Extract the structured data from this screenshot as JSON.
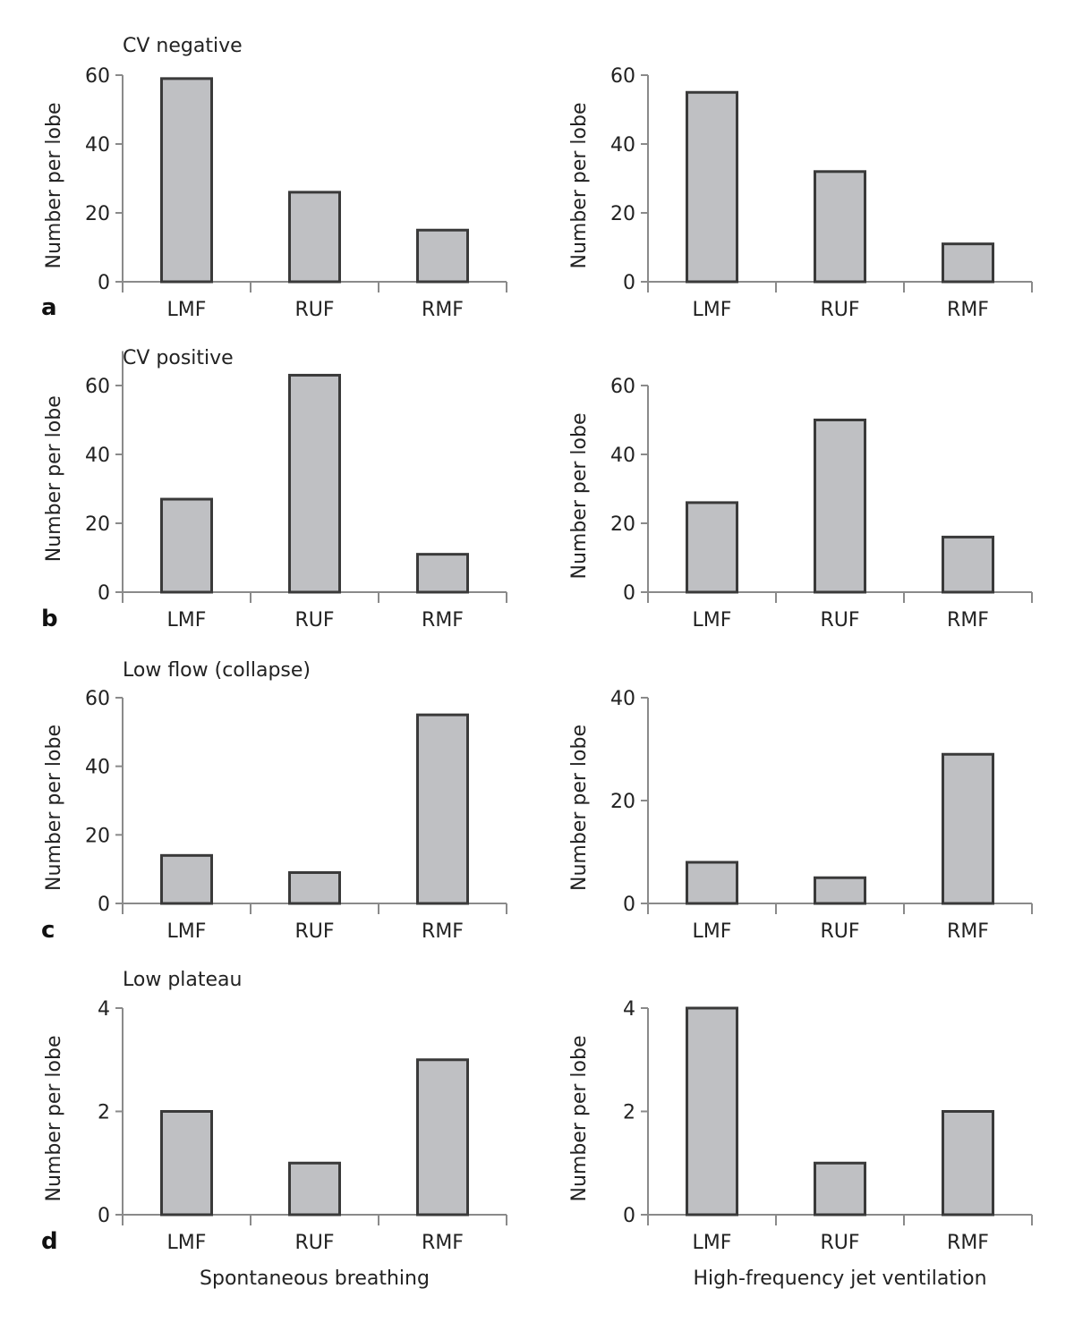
{
  "chart_data": [
    {
      "type": "bar",
      "panel": "a",
      "column": "Spontaneous breathing",
      "title": "CV negative",
      "categories": [
        "LMF",
        "RUF",
        "RMF"
      ],
      "values": [
        59,
        26,
        15
      ],
      "ylabel": "Number per lobe",
      "xlabel": "",
      "ylim": [
        0,
        60
      ],
      "yticks": [
        0,
        20,
        40,
        60
      ]
    },
    {
      "type": "bar",
      "panel": "a",
      "column": "High-frequency jet ventilation",
      "title": "",
      "categories": [
        "LMF",
        "RUF",
        "RMF"
      ],
      "values": [
        55,
        32,
        11
      ],
      "ylabel": "Number per lobe",
      "xlabel": "",
      "ylim": [
        0,
        60
      ],
      "yticks": [
        0,
        20,
        40,
        60
      ]
    },
    {
      "type": "bar",
      "panel": "b",
      "column": "Spontaneous breathing",
      "title": "CV positive",
      "categories": [
        "LMF",
        "RUF",
        "RMF"
      ],
      "values": [
        27,
        63,
        11
      ],
      "ylabel": "Number per lobe",
      "xlabel": "",
      "ylim": [
        0,
        70
      ],
      "yticks": [
        0,
        20,
        40,
        60
      ]
    },
    {
      "type": "bar",
      "panel": "b",
      "column": "High-frequency jet ventilation",
      "title": "",
      "categories": [
        "LMF",
        "RUF",
        "RMF"
      ],
      "values": [
        26,
        50,
        16
      ],
      "ylabel": "Number per lobe",
      "xlabel": "",
      "ylim": [
        0,
        60
      ],
      "yticks": [
        0,
        20,
        40,
        60
      ]
    },
    {
      "type": "bar",
      "panel": "c",
      "column": "Spontaneous breathing",
      "title": "Low flow (collapse)",
      "categories": [
        "LMF",
        "RUF",
        "RMF"
      ],
      "values": [
        14,
        9,
        55
      ],
      "ylabel": "Number per lobe",
      "xlabel": "",
      "ylim": [
        0,
        60
      ],
      "yticks": [
        0,
        20,
        40,
        60
      ]
    },
    {
      "type": "bar",
      "panel": "c",
      "column": "High-frequency jet ventilation",
      "title": "",
      "categories": [
        "LMF",
        "RUF",
        "RMF"
      ],
      "values": [
        8,
        5,
        29
      ],
      "ylabel": "Number per lobe",
      "xlabel": "",
      "ylim": [
        0,
        40
      ],
      "yticks": [
        0,
        20,
        40
      ]
    },
    {
      "type": "bar",
      "panel": "d",
      "column": "Spontaneous breathing",
      "title": "Low plateau",
      "categories": [
        "LMF",
        "RUF",
        "RMF"
      ],
      "values": [
        2,
        1,
        3
      ],
      "ylabel": "Number per lobe",
      "xlabel": "Spontaneous breathing",
      "ylim": [
        0,
        4
      ],
      "yticks": [
        0,
        2,
        4
      ]
    },
    {
      "type": "bar",
      "panel": "d",
      "column": "High-frequency jet ventilation",
      "title": "",
      "categories": [
        "LMF",
        "RUF",
        "RMF"
      ],
      "values": [
        4,
        1,
        2
      ],
      "ylabel": "Number per lobe",
      "xlabel": "High-frequency jet ventilation",
      "ylim": [
        0,
        4
      ],
      "yticks": [
        0,
        2,
        4
      ]
    }
  ],
  "panel_letters": [
    "a",
    "b",
    "c",
    "d"
  ],
  "column_labels": [
    "Spontaneous breathing",
    "High-frequency jet ventilation"
  ],
  "colors": {
    "bar_fill": "#bfc0c3",
    "bar_stroke": "#3a3a3a",
    "axis": "#8a8a8a"
  }
}
